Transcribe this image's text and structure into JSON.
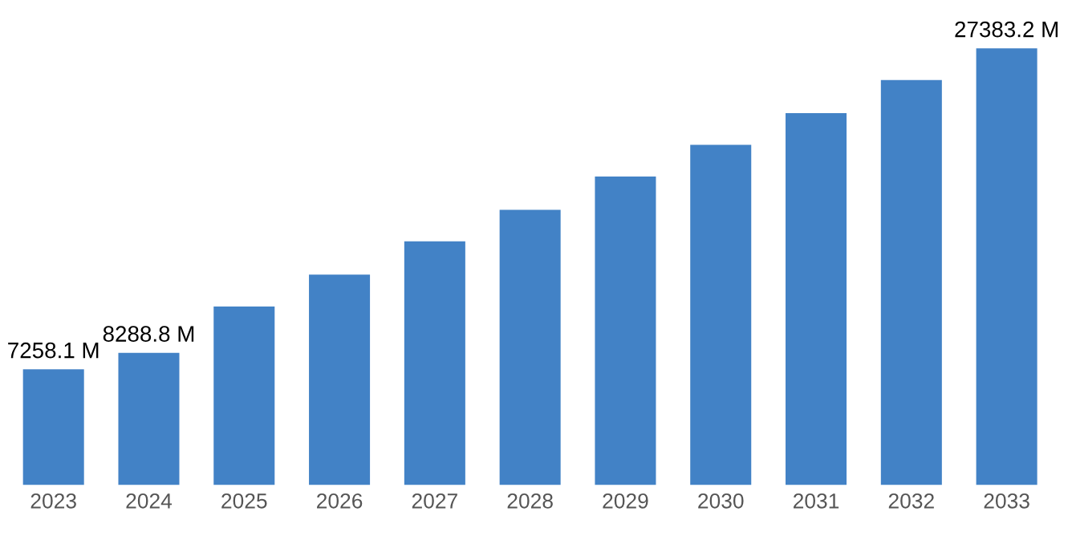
{
  "chart_data": {
    "type": "bar",
    "categories": [
      "2023",
      "2024",
      "2025",
      "2026",
      "2027",
      "2028",
      "2029",
      "2030",
      "2031",
      "2032",
      "2033"
    ],
    "values": [
      7258.1,
      8288.8,
      11200,
      13200,
      15280,
      17260,
      19350,
      21330,
      23320,
      25400,
      27383.2
    ],
    "value_labels": [
      "7258.1 M",
      "8288.8 M",
      null,
      null,
      null,
      null,
      null,
      null,
      null,
      null,
      "27383.2 M"
    ],
    "color": "#4282c6",
    "grid": false,
    "legend": false,
    "tick_labels": "x"
  }
}
